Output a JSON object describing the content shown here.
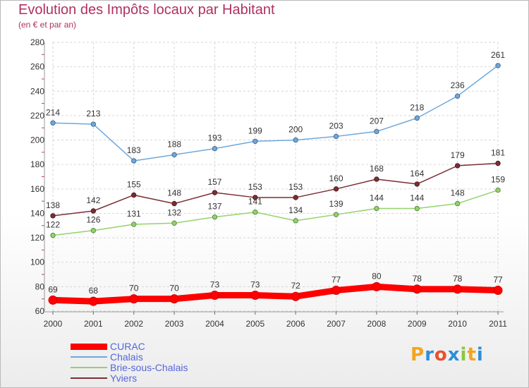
{
  "title": "Evolution des Impôts locaux par Habitant",
  "subtitle": "(en € et par an)",
  "logo": {
    "letters": [
      "P",
      "r",
      "o",
      "x",
      "i",
      "t",
      "i"
    ],
    "colors": [
      "#f2a51f",
      "#2e8fd6",
      "#e8502d",
      "#2e8fd6",
      "#8cc63e",
      "#f2a51f",
      "#2e8fd6"
    ]
  },
  "chart_data": {
    "type": "line",
    "title": "Evolution des Impôts locaux par Habitant",
    "subtitle": "(en € et par an)",
    "x": [
      "2000",
      "2001",
      "2002",
      "2003",
      "2004",
      "2005",
      "2006",
      "2007",
      "2008",
      "2009",
      "2010",
      "2011"
    ],
    "ylim": [
      60,
      280
    ],
    "yticks": [
      60,
      80,
      100,
      120,
      140,
      160,
      180,
      200,
      220,
      240,
      260,
      280
    ],
    "grid": true,
    "legend_position": "bottom-left",
    "series": [
      {
        "name": "CURAC",
        "color": "#ff0000",
        "values": [
          69,
          68,
          70,
          70,
          73,
          73,
          72,
          77,
          80,
          78,
          78,
          77
        ]
      },
      {
        "name": "Chalais",
        "color": "#6fa8dc",
        "values": [
          214,
          213,
          183,
          188,
          193,
          199,
          200,
          203,
          207,
          218,
          236,
          261
        ]
      },
      {
        "name": "Brie-sous-Chalais",
        "color": "#93d36b",
        "values": [
          122,
          126,
          131,
          132,
          137,
          141,
          134,
          139,
          144,
          144,
          148,
          159
        ]
      },
      {
        "name": "Yviers",
        "color": "#7b2e34",
        "values": [
          138,
          142,
          155,
          148,
          157,
          153,
          153,
          160,
          168,
          164,
          179,
          181
        ]
      }
    ]
  }
}
